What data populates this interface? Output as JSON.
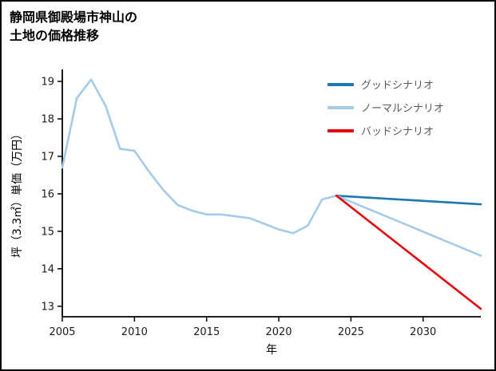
{
  "title": {
    "line1": "静岡県御殿場市神山の",
    "line2": "土地の価格推移"
  },
  "chart_data": {
    "type": "line",
    "title": "静岡県御殿場市神山の土地の価格推移",
    "xlabel": "年",
    "ylabel": "坪（3.3㎡）単価（万円）",
    "xlim": [
      2005,
      2034
    ],
    "ylim": [
      12.72,
      19.32
    ],
    "xticks": [
      2005,
      2010,
      2015,
      2020,
      2025,
      2030
    ],
    "yticks": [
      13,
      14,
      15,
      16,
      17,
      18,
      19
    ],
    "grid": false,
    "legend_position": "upper right",
    "axis_color": "#000000",
    "tick_label_color": "#1a1a1a",
    "legend_text_color": "#595959",
    "series": [
      {
        "id": "history",
        "in_legend": false,
        "color": "#a5cbe8",
        "width": 2.6,
        "x": [
          2005,
          2006,
          2007,
          2008,
          2009,
          2010,
          2011,
          2012,
          2013,
          2014,
          2015,
          2016,
          2017,
          2018,
          2019,
          2020,
          2021,
          2022,
          2023,
          2024
        ],
        "y": [
          16.7,
          18.55,
          19.05,
          18.35,
          17.2,
          17.15,
          16.6,
          16.1,
          15.7,
          15.55,
          15.45,
          15.45,
          15.4,
          15.35,
          15.2,
          15.05,
          14.95,
          15.15,
          15.85,
          15.95
        ]
      },
      {
        "id": "good-scenario",
        "name": "グッドシナリオ",
        "in_legend": true,
        "color": "#1f77b4",
        "width": 2.6,
        "x": [
          2024,
          2034
        ],
        "y": [
          15.95,
          15.72
        ]
      },
      {
        "id": "normal-scenario",
        "name": "ノーマルシナリオ",
        "in_legend": true,
        "color": "#a5cbe8",
        "width": 2.6,
        "x": [
          2024,
          2034
        ],
        "y": [
          15.95,
          14.35
        ]
      },
      {
        "id": "bad-scenario",
        "name": "バッドシナリオ",
        "in_legend": true,
        "color": "#e8000d",
        "width": 2.6,
        "x": [
          2024,
          2034
        ],
        "y": [
          15.95,
          12.93
        ]
      }
    ]
  }
}
